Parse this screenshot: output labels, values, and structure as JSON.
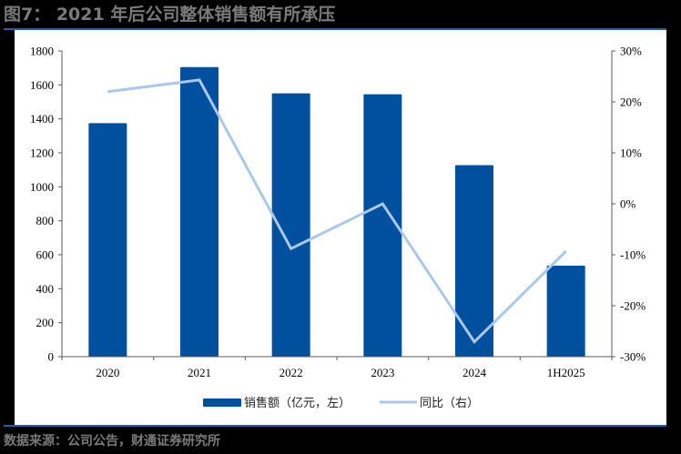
{
  "header": {
    "title": "图7： 2021 年后公司整体销售额有所承压"
  },
  "footer": {
    "source": "数据来源：公司公告，财通证券研究所"
  },
  "colors": {
    "bar": "#0050a0",
    "line": "#a9c8ea",
    "rule": "#1f5fa8",
    "axis": "#595959"
  },
  "legend": {
    "bar_label": "销售额（亿元，左）",
    "line_label": "同比（右）"
  },
  "chart_data": {
    "type": "bar+line",
    "title": "2021 年后公司整体销售额有所承压",
    "categories": [
      "2020",
      "2021",
      "2022",
      "2023",
      "2024",
      "1H2025"
    ],
    "series": [
      {
        "name": "销售额（亿元，左）",
        "type": "bar",
        "axis": "left",
        "values": [
          1375,
          1705,
          1550,
          1545,
          1128,
          536
        ]
      },
      {
        "name": "同比（右）",
        "type": "line",
        "axis": "right",
        "unit": "%",
        "values": [
          22.0,
          24.3,
          -8.8,
          0.0,
          -27.1,
          -9.3
        ]
      }
    ],
    "left_axis": {
      "min": 0,
      "max": 1800,
      "step": 200,
      "ticks": [
        "0",
        "200",
        "400",
        "600",
        "800",
        "1000",
        "1200",
        "1400",
        "1600",
        "1800"
      ]
    },
    "right_axis": {
      "min": -30,
      "max": 30,
      "step": 10,
      "ticks": [
        "-30%",
        "-20%",
        "-10%",
        "0%",
        "10%",
        "20%",
        "30%"
      ]
    },
    "xlabel": "",
    "ylabel_left": "",
    "ylabel_right": "",
    "grid": false,
    "legend_position": "bottom"
  }
}
